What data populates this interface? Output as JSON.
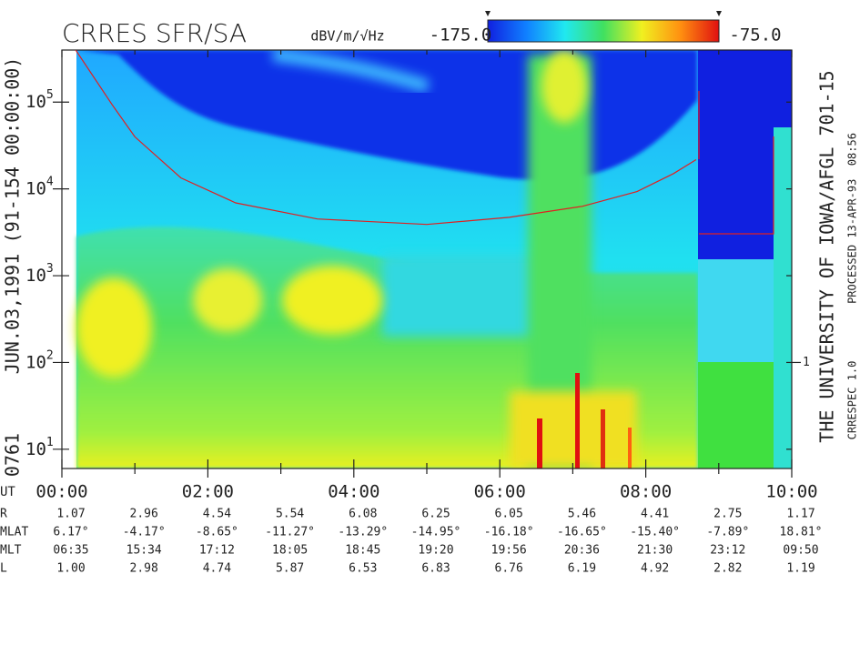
{
  "chart_data": {
    "type": "spectrogram",
    "title": "CRRES SFR/SA",
    "colorbar_label": "dBV/m/√Hz",
    "colorbar_ticks": [
      {
        "value": -175,
        "label": "-175.0"
      },
      {
        "value": -75,
        "label": "-75.0"
      }
    ],
    "colors": [
      "#1020e0",
      "#1080ff",
      "#20e8f0",
      "#40e060",
      "#f0f020",
      "#ff9010",
      "#e01010"
    ],
    "left_labels": [
      "0761",
      "JUN.03,1991",
      "(91-154 00:00:00)"
    ],
    "right_title": "THE UNIVERSITY OF IOWA/AFGL 701-15",
    "right_notes": [
      "CRRESPEC 1.0",
      "PROCESSED 13-APR-93  08:56"
    ],
    "log_y": true,
    "ylim": [
      6,
      398107
    ],
    "yticks": [
      {
        "value": 10,
        "label": "10",
        "exponent": "1"
      },
      {
        "value": 100,
        "label": "10",
        "exponent": "2"
      },
      {
        "value": 1000,
        "label": "10",
        "exponent": "3"
      },
      {
        "value": 10000,
        "label": "10",
        "exponent": "4"
      },
      {
        "value": 100000,
        "label": "10",
        "exponent": "5"
      }
    ],
    "y2lim": [
      0.06,
      3981
    ],
    "y2ticks": [
      1
    ],
    "xlabel": "UT",
    "xlim": [
      0,
      10
    ],
    "xticks": [
      {
        "value": 0,
        "label": "00:00"
      },
      {
        "value": 2,
        "label": "02:00"
      },
      {
        "value": 4,
        "label": "04:00"
      },
      {
        "value": 6,
        "label": "06:00"
      },
      {
        "value": 8,
        "label": "08:00"
      },
      {
        "value": 10,
        "label": "10:00"
      }
    ],
    "xminor": [
      1,
      3,
      5,
      7,
      9
    ],
    "line": {
      "color": "#e02020",
      "x": [
        0.19,
        0.69,
        1.0,
        1.63,
        2.38,
        3.5,
        5.0,
        6.13,
        7.13,
        7.88,
        8.38,
        8.69
      ],
      "values": [
        398000,
        93000,
        39800,
        13400,
        6900,
        4500,
        3900,
        4700,
        6300,
        9300,
        15000,
        21700
      ]
    },
    "ephemeris": [
      {
        "label": "R",
        "values": [
          "1.07",
          "2.96",
          "4.54",
          "5.54",
          "6.08",
          "6.25",
          "6.05",
          "5.46",
          "4.41",
          "2.75",
          "1.17"
        ]
      },
      {
        "label": "MLAT",
        "values": [
          "6.17°",
          "-4.17°",
          "-8.65°",
          "-11.27°",
          "-13.29°",
          "-14.95°",
          "-16.18°",
          "-16.65°",
          "-15.40°",
          "-7.89°",
          "18.81°"
        ]
      },
      {
        "label": "MLT",
        "values": [
          "06:35",
          "15:34",
          "17:12",
          "18:05",
          "18:45",
          "19:20",
          "19:56",
          "20:36",
          "21:30",
          "23:12",
          "09:50"
        ]
      },
      {
        "label": "L",
        "values": [
          "1.00",
          "2.98",
          "4.74",
          "5.87",
          "6.53",
          "6.83",
          "6.76",
          "6.19",
          "4.92",
          "2.82",
          "1.19"
        ]
      }
    ]
  }
}
